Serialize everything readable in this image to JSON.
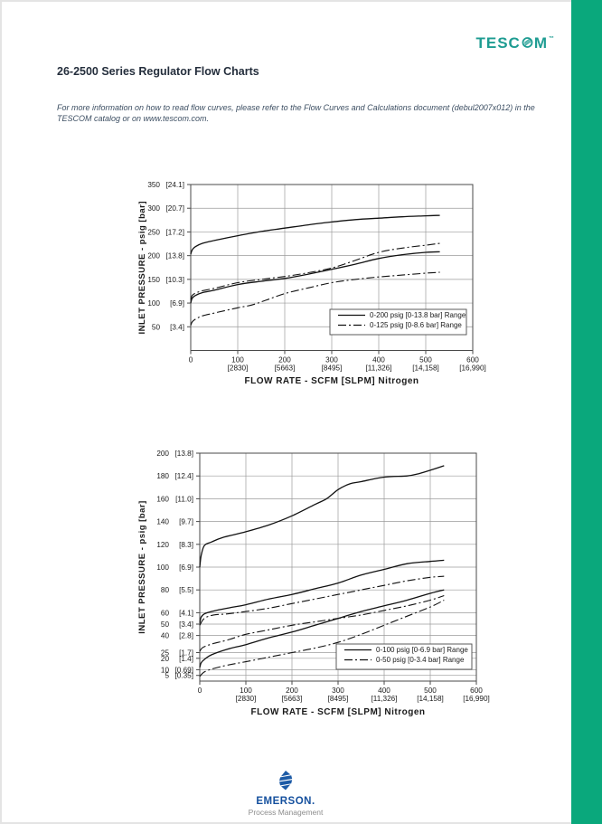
{
  "page": {
    "brand": {
      "pre_o": "TESC",
      "post_o": "M",
      "mark": "™",
      "color": "#1e9c92"
    },
    "title": "26-2500 Series Regulator Flow Charts",
    "note": "For more information on how to read flow curves, please refer to the Flow Curves and Calculations document (debul2007x012) in the TESCOM catalog or on www.tescom.com.",
    "side_bar_color": "#0aa87c",
    "footer": {
      "brand": "EMERSON.",
      "brand_color": "#15509e",
      "subtitle": "Process Management",
      "subtitle_color": "#8c8c8c"
    }
  },
  "chart_data": [
    {
      "type": "line",
      "title": "",
      "xlabel": "FLOW RATE - SCFM [SLPM] Nitrogen",
      "ylabel": "INLET PRESSURE - psig [bar]",
      "xlim": [
        0,
        600
      ],
      "ylim": [
        0,
        350
      ],
      "grid": true,
      "legend_position": "inside lower right",
      "x_ticks": [
        {
          "v": 0,
          "label": "0",
          "sub": ""
        },
        {
          "v": 100,
          "label": "100",
          "sub": "[2830]"
        },
        {
          "v": 200,
          "label": "200",
          "sub": "[5663]"
        },
        {
          "v": 300,
          "label": "300",
          "sub": "[8495]"
        },
        {
          "v": 400,
          "label": "400",
          "sub": "[11,326]"
        },
        {
          "v": 500,
          "label": "500",
          "sub": "[14,158]"
        },
        {
          "v": 600,
          "label": "600",
          "sub": "[16,990]"
        }
      ],
      "y_ticks": [
        {
          "v": 350,
          "label": "350",
          "sub": "[24.1]"
        },
        {
          "v": 300,
          "label": "300",
          "sub": "[20.7]"
        },
        {
          "v": 250,
          "label": "250",
          "sub": "[17.2]"
        },
        {
          "v": 200,
          "label": "200",
          "sub": "[13.8]"
        },
        {
          "v": 150,
          "label": "150",
          "sub": "[10.3]"
        },
        {
          "v": 100,
          "label": "100",
          "sub": "[6.9]"
        },
        {
          "v": 50,
          "label": "50",
          "sub": "[3.4]"
        }
      ],
      "legend": [
        {
          "label": "0-200 psig [0-13.8 bar] Range",
          "style": "solid"
        },
        {
          "label": "0-125 psig [0-8.6 bar] Range",
          "style": "dashdot"
        }
      ],
      "series": [
        {
          "name": "0-200 psig range - upper curve",
          "style": "solid",
          "points": [
            [
              0,
              203
            ],
            [
              3,
              212
            ],
            [
              10,
              219
            ],
            [
              25,
              226
            ],
            [
              50,
              232
            ],
            [
              100,
              242
            ],
            [
              150,
              251
            ],
            [
              200,
              258
            ],
            [
              250,
              265
            ],
            [
              300,
              271
            ],
            [
              350,
              276
            ],
            [
              400,
              279
            ],
            [
              450,
              282
            ],
            [
              500,
              284
            ],
            [
              530,
              285
            ]
          ]
        },
        {
          "name": "0-200 psig range - lower curve",
          "style": "solid",
          "points": [
            [
              0,
              100
            ],
            [
              3,
              110
            ],
            [
              10,
              116
            ],
            [
              25,
              122
            ],
            [
              50,
              127
            ],
            [
              100,
              139
            ],
            [
              150,
              146
            ],
            [
              200,
              152
            ],
            [
              250,
              161
            ],
            [
              300,
              171
            ],
            [
              350,
              182
            ],
            [
              400,
              194
            ],
            [
              450,
              202
            ],
            [
              500,
              207
            ],
            [
              530,
              208
            ]
          ]
        },
        {
          "name": "0-125 psig range - upper curve",
          "style": "dashdot",
          "points": [
            [
              0,
              107
            ],
            [
              3,
              116
            ],
            [
              10,
              121
            ],
            [
              25,
              126
            ],
            [
              50,
              131
            ],
            [
              100,
              143
            ],
            [
              150,
              150
            ],
            [
              200,
              156
            ],
            [
              250,
              164
            ],
            [
              300,
              174
            ],
            [
              350,
              190
            ],
            [
              400,
              207
            ],
            [
              450,
              216
            ],
            [
              500,
              222
            ],
            [
              530,
              226
            ]
          ]
        },
        {
          "name": "0-125 psig range - lower curve",
          "style": "dashdot",
          "points": [
            [
              0,
              53
            ],
            [
              3,
              60
            ],
            [
              10,
              66
            ],
            [
              25,
              73
            ],
            [
              50,
              79
            ],
            [
              100,
              90
            ],
            [
              130,
              96
            ],
            [
              160,
              106
            ],
            [
              200,
              120
            ],
            [
              250,
              132
            ],
            [
              300,
              143
            ],
            [
              350,
              150
            ],
            [
              400,
              155
            ],
            [
              450,
              159
            ],
            [
              500,
              163
            ],
            [
              530,
              165
            ]
          ]
        }
      ]
    },
    {
      "type": "line",
      "title": "",
      "xlabel": "FLOW RATE - SCFM [SLPM] Nitrogen",
      "ylabel": "INLET PRESSURE - psig [bar]",
      "xlim": [
        0,
        600
      ],
      "ylim": [
        0,
        200
      ],
      "grid": true,
      "legend_position": "inside lower right",
      "x_ticks": [
        {
          "v": 0,
          "label": "0",
          "sub": ""
        },
        {
          "v": 100,
          "label": "100",
          "sub": "[2830]"
        },
        {
          "v": 200,
          "label": "200",
          "sub": "[5663]"
        },
        {
          "v": 300,
          "label": "300",
          "sub": "[8495]"
        },
        {
          "v": 400,
          "label": "400",
          "sub": "[11,326]"
        },
        {
          "v": 500,
          "label": "500",
          "sub": "[14,158]"
        },
        {
          "v": 600,
          "label": "600",
          "sub": "[16,990]"
        }
      ],
      "y_ticks": [
        {
          "v": 200,
          "label": "200",
          "sub": "[13.8]"
        },
        {
          "v": 180,
          "label": "180",
          "sub": "[12.4]"
        },
        {
          "v": 160,
          "label": "160",
          "sub": "[11.0]"
        },
        {
          "v": 140,
          "label": "140",
          "sub": "[9.7]"
        },
        {
          "v": 120,
          "label": "120",
          "sub": "[8.3]"
        },
        {
          "v": 100,
          "label": "100",
          "sub": "[6.9]"
        },
        {
          "v": 80,
          "label": "80",
          "sub": "[5.5]"
        },
        {
          "v": 60,
          "label": "60",
          "sub": "[4.1]"
        },
        {
          "v": 50,
          "label": "50",
          "sub": "[3.4]"
        },
        {
          "v": 40,
          "label": "40",
          "sub": "[2.8]"
        },
        {
          "v": 25,
          "label": "25",
          "sub": "[1.7]"
        },
        {
          "v": 20,
          "label": "20",
          "sub": "[1.4]"
        },
        {
          "v": 10,
          "label": "10",
          "sub": "[0.69]"
        },
        {
          "v": 5,
          "label": "5",
          "sub": "[0.35]"
        }
      ],
      "legend": [
        {
          "label": "0-100 psig [0-6.9 bar] Range",
          "style": "solid"
        },
        {
          "label": "0-50 psig [0-3.4 bar] Range",
          "style": "dashdot"
        }
      ],
      "series": [
        {
          "name": "0-100 psig range - top curve",
          "style": "solid",
          "points": [
            [
              0,
              100
            ],
            [
              3,
              110
            ],
            [
              10,
              119
            ],
            [
              25,
              122
            ],
            [
              50,
              126
            ],
            [
              100,
              131
            ],
            [
              150,
              137
            ],
            [
              200,
              145
            ],
            [
              250,
              155
            ],
            [
              275,
              160
            ],
            [
              300,
              168
            ],
            [
              325,
              173
            ],
            [
              350,
              175
            ],
            [
              400,
              179
            ],
            [
              450,
              180
            ],
            [
              475,
              182
            ],
            [
              500,
              185
            ],
            [
              530,
              189
            ]
          ]
        },
        {
          "name": "0-100 psig range - middle curve",
          "style": "solid",
          "points": [
            [
              0,
              51
            ],
            [
              3,
              56
            ],
            [
              10,
              59
            ],
            [
              25,
              61
            ],
            [
              60,
              64
            ],
            [
              100,
              67
            ],
            [
              150,
              72
            ],
            [
              200,
              76
            ],
            [
              250,
              81
            ],
            [
              300,
              86
            ],
            [
              350,
              93
            ],
            [
              400,
              98
            ],
            [
              450,
              103
            ],
            [
              500,
              105
            ],
            [
              530,
              106
            ]
          ]
        },
        {
          "name": "0-100 psig range - bottom curve",
          "style": "solid",
          "points": [
            [
              0,
              12
            ],
            [
              3,
              16
            ],
            [
              10,
              19
            ],
            [
              25,
              23
            ],
            [
              60,
              28
            ],
            [
              100,
              32
            ],
            [
              150,
              38
            ],
            [
              200,
              43
            ],
            [
              250,
              49
            ],
            [
              300,
              55
            ],
            [
              350,
              61
            ],
            [
              400,
              66
            ],
            [
              450,
              71
            ],
            [
              500,
              77
            ],
            [
              530,
              80
            ]
          ]
        },
        {
          "name": "0-50 psig range - top curve",
          "style": "dashdot",
          "points": [
            [
              0,
              49
            ],
            [
              10,
              55
            ],
            [
              30,
              58
            ],
            [
              60,
              59
            ],
            [
              100,
              61
            ],
            [
              150,
              64
            ],
            [
              200,
              68
            ],
            [
              250,
              72
            ],
            [
              300,
              76
            ],
            [
              350,
              80
            ],
            [
              400,
              84
            ],
            [
              450,
              88
            ],
            [
              500,
              91
            ],
            [
              530,
              92
            ]
          ]
        },
        {
          "name": "0-50 psig range - middle curve",
          "style": "dashdot",
          "points": [
            [
              0,
              26
            ],
            [
              5,
              29
            ],
            [
              15,
              31
            ],
            [
              30,
              33
            ],
            [
              60,
              36
            ],
            [
              100,
              41
            ],
            [
              150,
              45
            ],
            [
              200,
              49
            ],
            [
              250,
              52
            ],
            [
              300,
              55
            ],
            [
              350,
              58
            ],
            [
              400,
              62
            ],
            [
              450,
              66
            ],
            [
              500,
              71
            ],
            [
              530,
              75
            ]
          ]
        },
        {
          "name": "0-50 psig range - bottom curve",
          "style": "dashdot",
          "points": [
            [
              0,
              4
            ],
            [
              10,
              8
            ],
            [
              30,
              11
            ],
            [
              60,
              14
            ],
            [
              100,
              17
            ],
            [
              150,
              21
            ],
            [
              200,
              25
            ],
            [
              250,
              29
            ],
            [
              300,
              34
            ],
            [
              350,
              41
            ],
            [
              400,
              49
            ],
            [
              450,
              57
            ],
            [
              500,
              65
            ],
            [
              530,
              71
            ]
          ]
        }
      ]
    }
  ]
}
